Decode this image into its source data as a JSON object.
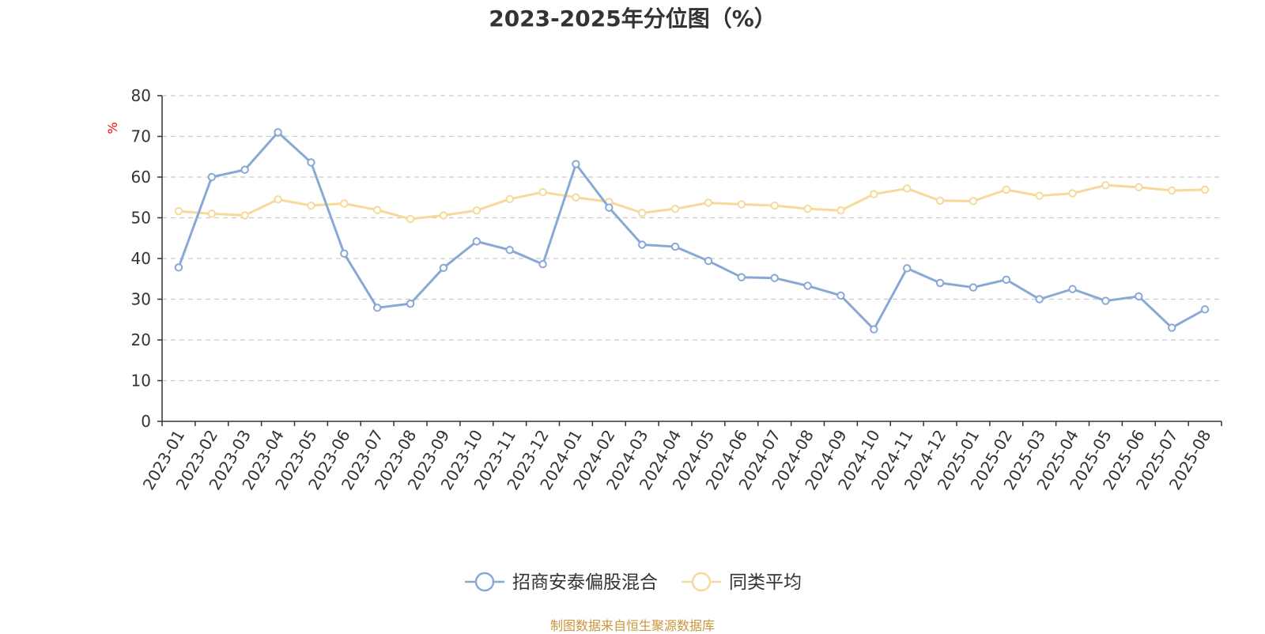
{
  "title": "2023-2025年分位图（%）",
  "footer": "制图数据来自恒生聚源数据库",
  "colors": {
    "series_main": "#8aa8d6",
    "series_avg": "#f7d99a",
    "unit_label": "#ff0000",
    "axis": "#333333",
    "grid": "#cccccc",
    "footer": "#c8963c"
  },
  "chart_data": {
    "type": "line",
    "ylabel": "%",
    "ylim": [
      0,
      80
    ],
    "yticks": [
      0,
      10,
      20,
      30,
      40,
      50,
      60,
      70,
      80
    ],
    "grid": "horizontal dashed",
    "legend_position": "bottom-center",
    "categories": [
      "2023-01",
      "2023-02",
      "2023-03",
      "2023-04",
      "2023-05",
      "2023-06",
      "2023-07",
      "2023-08",
      "2023-09",
      "2023-10",
      "2023-11",
      "2023-12",
      "2024-01",
      "2024-02",
      "2024-03",
      "2024-04",
      "2024-05",
      "2024-06",
      "2024-07",
      "2024-08",
      "2024-09",
      "2024-10",
      "2024-11",
      "2024-12",
      "2025-01",
      "2025-02",
      "2025-03",
      "2025-04",
      "2025-05",
      "2025-06",
      "2025-07",
      "2025-08"
    ],
    "series": [
      {
        "name": "招商安泰偏股混合",
        "color": "#8aa8d6",
        "values": [
          37.8,
          60.0,
          61.8,
          71.0,
          63.6,
          41.2,
          27.9,
          28.9,
          37.7,
          44.2,
          42.1,
          38.6,
          63.2,
          52.5,
          43.4,
          42.9,
          39.4,
          35.4,
          35.2,
          33.3,
          30.9,
          22.6,
          37.6,
          34.0,
          32.9,
          34.8,
          30.0,
          32.5,
          29.6,
          30.7,
          23.0,
          27.5
        ]
      },
      {
        "name": "同类平均",
        "color": "#f7d99a",
        "values": [
          51.6,
          51.0,
          50.6,
          54.5,
          53.0,
          53.5,
          51.9,
          49.7,
          50.6,
          51.8,
          54.6,
          56.3,
          55.0,
          53.9,
          51.2,
          52.2,
          53.7,
          53.3,
          53.0,
          52.2,
          51.8,
          55.8,
          57.2,
          54.2,
          54.1,
          56.9,
          55.4,
          56.0,
          58.0,
          57.5,
          56.7,
          56.9
        ]
      }
    ]
  }
}
